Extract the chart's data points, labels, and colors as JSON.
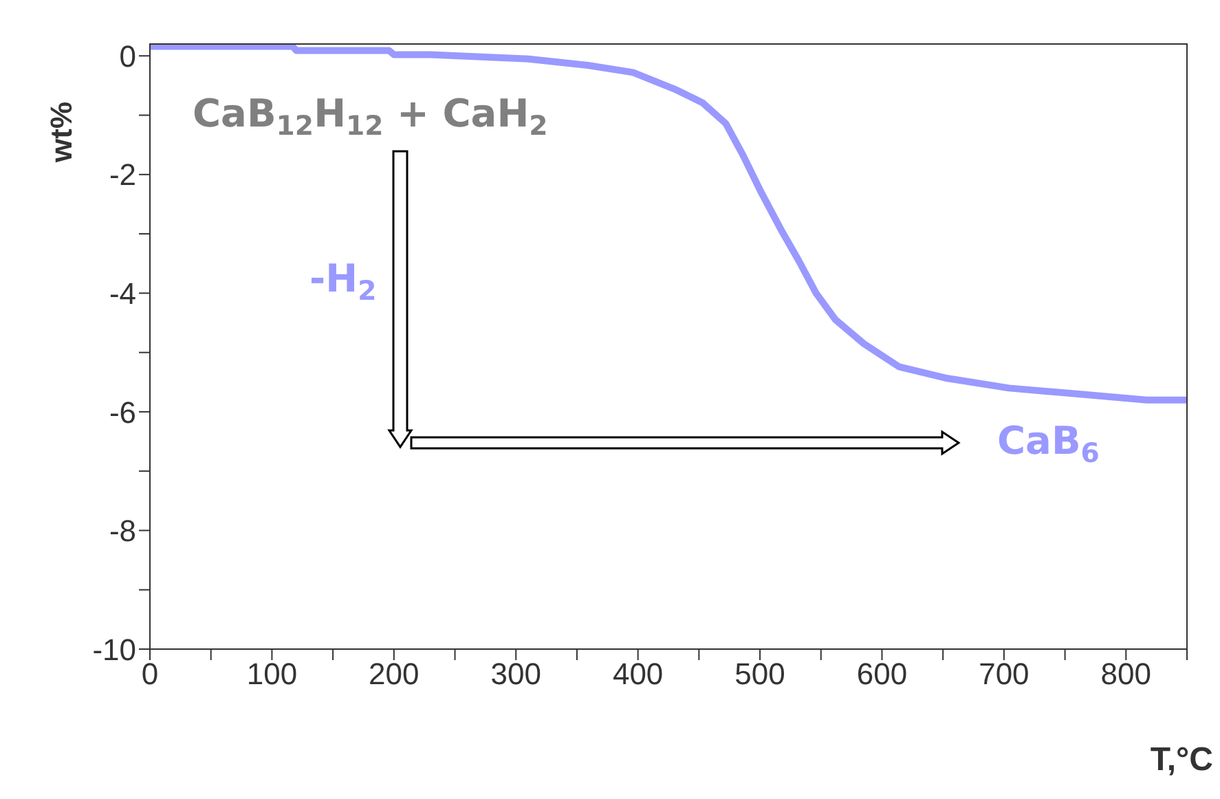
{
  "chart_data": {
    "type": "line",
    "xlabel": "T,°C",
    "ylabel": "wt%",
    "x": [
      0,
      60,
      117,
      120,
      196,
      200,
      230,
      309,
      359,
      396,
      430,
      453,
      472,
      486,
      501,
      517,
      532,
      546,
      562,
      585,
      614,
      652,
      704,
      761,
      817,
      850
    ],
    "series": [
      {
        "color": "#9999ff",
        "values": [
          0.16,
          0.16,
          0.16,
          0.09,
          0.09,
          0.02,
          0.02,
          -0.05,
          -0.16,
          -0.28,
          -0.56,
          -0.79,
          -1.14,
          -1.67,
          -2.3,
          -2.92,
          -3.46,
          -4.0,
          -4.45,
          -4.85,
          -5.24,
          -5.43,
          -5.6,
          -5.7,
          -5.8,
          -5.8
        ]
      }
    ],
    "xlim": [
      0,
      850
    ],
    "xticks": [
      0,
      {
        "value": 50,
        "label": null
      },
      100,
      {
        "value": 150,
        "label": null
      },
      200,
      {
        "value": 250,
        "label": null
      },
      300,
      {
        "value": 350,
        "label": null
      },
      400,
      {
        "value": 450,
        "label": null
      },
      500,
      {
        "value": 550,
        "label": null
      },
      600,
      {
        "value": 650,
        "label": null
      },
      700,
      {
        "value": 750,
        "label": null
      },
      800,
      {
        "value": 850,
        "label": null
      }
    ],
    "ylim": [
      -10,
      0.2
    ],
    "yticks": [
      -10,
      {
        "value": -9,
        "label": null
      },
      -8,
      {
        "value": -7,
        "label": null
      },
      -6,
      {
        "value": -5,
        "label": null
      },
      -4,
      {
        "value": -3,
        "label": null
      },
      -2,
      {
        "value": -1,
        "label": null
      },
      0
    ],
    "marker": "none",
    "line_style": "solid",
    "grid": false,
    "legend": false,
    "annotations": [
      "CaB$_{12}$H$_{12}$ + CaH$_{2}$",
      "-H$_{2}$",
      "CaB$_{6}$"
    ]
  }
}
